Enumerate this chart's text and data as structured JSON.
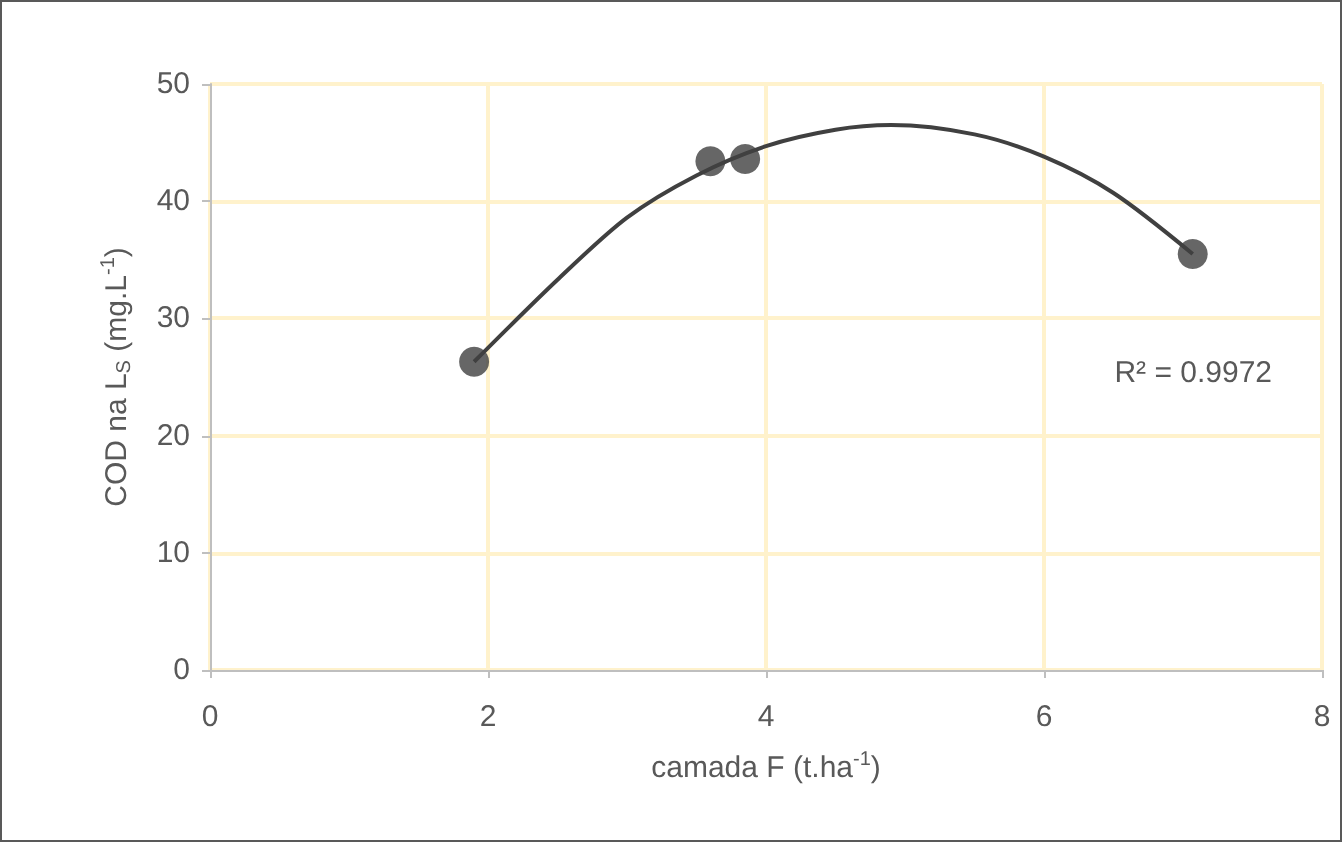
{
  "chart_data": {
    "type": "scatter",
    "xlabel": "camada F (t.ha$^{-1}$)",
    "ylabel": "COD na L$_{S}$ (mg.L$^{-1}$)",
    "xlim": [
      0,
      8
    ],
    "xticks": [
      0,
      2,
      4,
      6,
      8
    ],
    "ylim": [
      0,
      50
    ],
    "yticks": [
      0,
      10,
      20,
      30,
      40,
      50
    ],
    "grid": true,
    "marker": "circle",
    "series": [
      {
        "color": "#404040",
        "x": [
          1.9,
          3.6,
          3.85,
          7.07
        ],
        "values": [
          26.3,
          43.4,
          43.6,
          35.5
        ]
      },
      {
        "type": "line",
        "color": "#404040",
        "line_style": "solid",
        "marker": "none",
        "x": [
          1.9,
          2.5,
          3,
          3.5,
          4,
          4.5,
          4.9,
          5.5,
          6,
          6.5,
          7.07
        ],
        "values": [
          26.3,
          33.3,
          38.6,
          42.2,
          44.7,
          46.1,
          46.5,
          45.7,
          43.8,
          40.7,
          35.5
        ]
      }
    ],
    "annotations": [
      "R² = 0.9972"
    ]
  }
}
